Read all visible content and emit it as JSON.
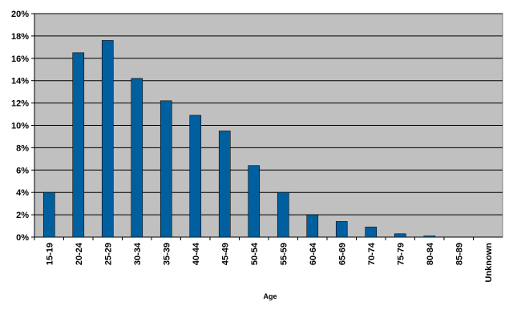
{
  "chart_data": {
    "type": "bar",
    "x_label": "Age",
    "categories": [
      "15-19",
      "20-24",
      "25-29",
      "30-34",
      "35-39",
      "40-44",
      "45-49",
      "50-54",
      "55-59",
      "60-64",
      "65-69",
      "70-74",
      "75-79",
      "80-84",
      "85-89",
      "Unknown"
    ],
    "values": [
      4.0,
      16.5,
      17.6,
      14.2,
      12.2,
      10.9,
      9.5,
      6.4,
      4.0,
      2.0,
      1.4,
      0.9,
      0.3,
      0.1,
      0,
      0
    ],
    "color": "#00609f",
    "ylim": [
      0,
      20
    ],
    "yticks": [
      {
        "value": 0,
        "label": "0%"
      },
      {
        "value": 2,
        "label": "2%"
      },
      {
        "value": 4,
        "label": "4%"
      },
      {
        "value": 6,
        "label": "6%"
      },
      {
        "value": 8,
        "label": "8%"
      },
      {
        "value": 10,
        "label": "10%"
      },
      {
        "value": 12,
        "label": "12%"
      },
      {
        "value": 14,
        "label": "14%"
      },
      {
        "value": 16,
        "label": "16%"
      },
      {
        "value": 18,
        "label": "18%"
      },
      {
        "value": 20,
        "label": "20%"
      }
    ],
    "grid": true
  }
}
